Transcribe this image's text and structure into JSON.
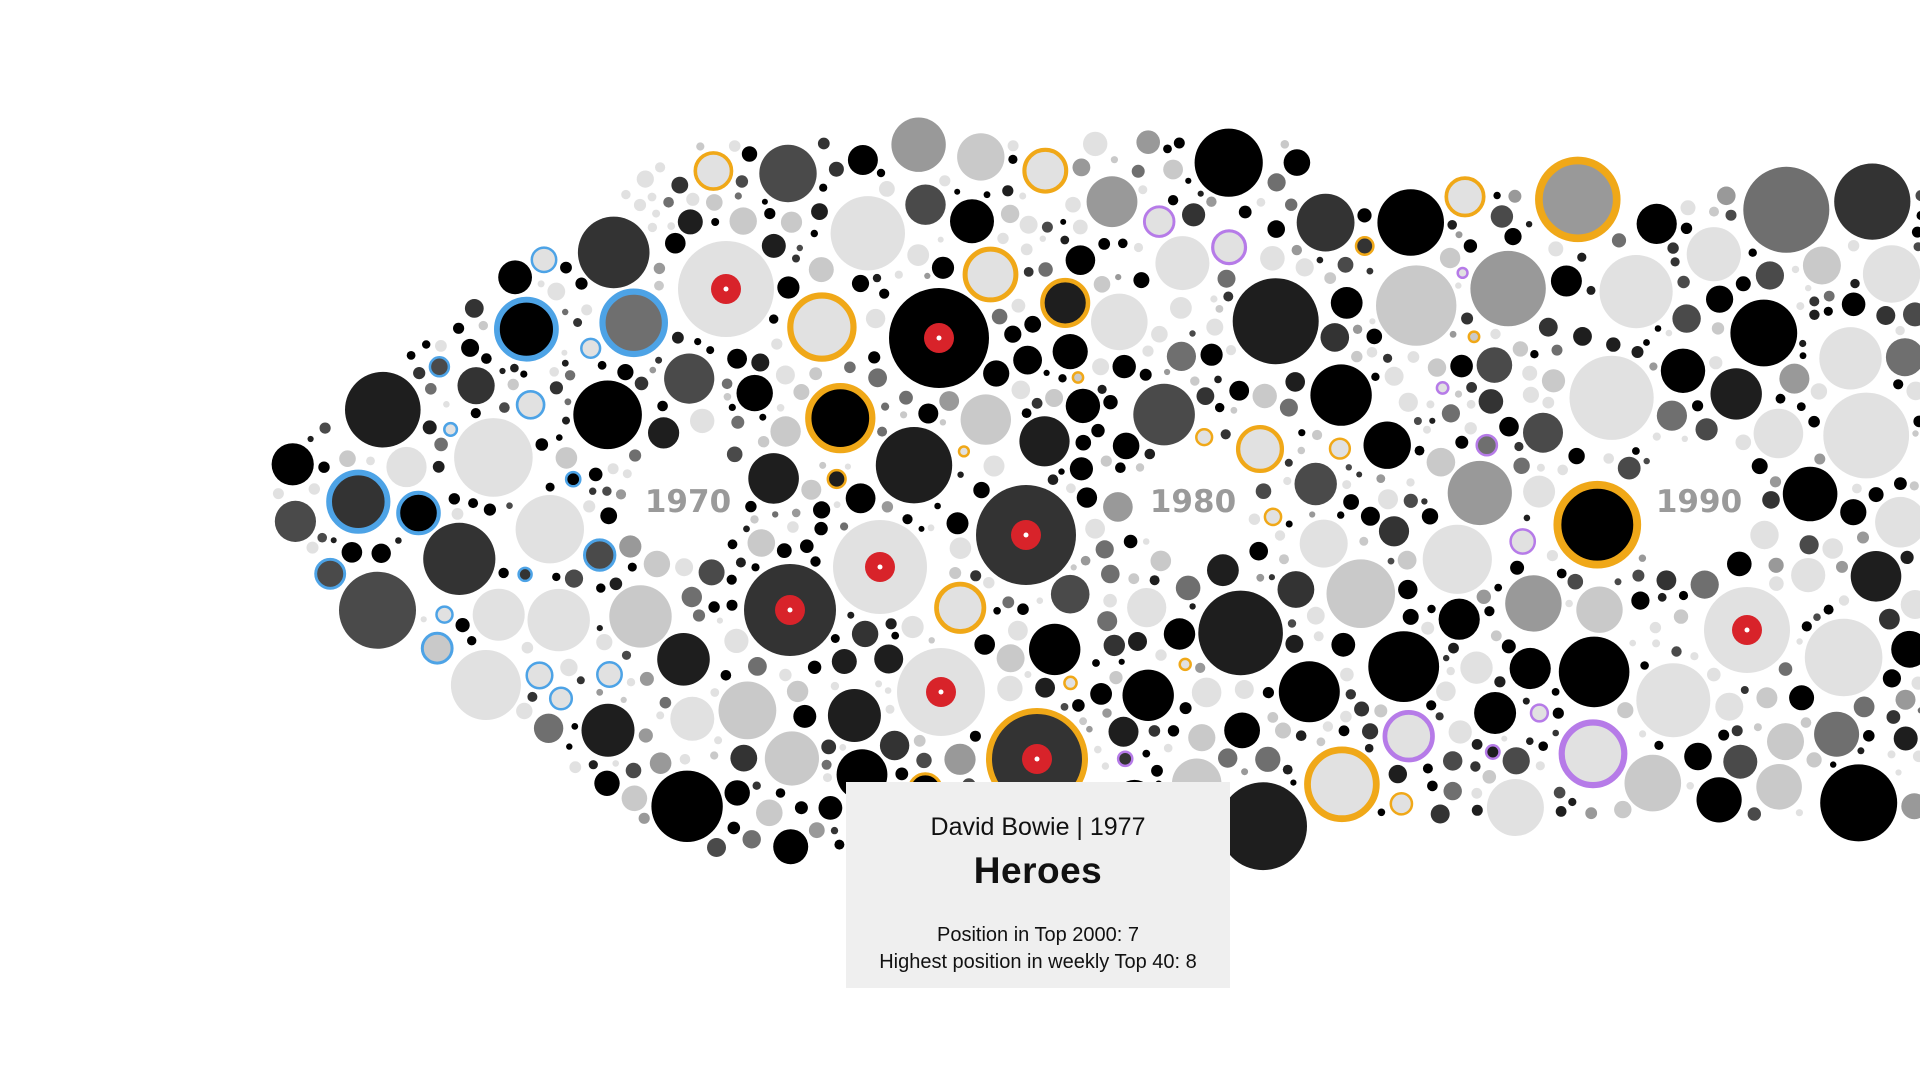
{
  "chart_data": {
    "type": "scatter",
    "decade_labels": [
      "1970",
      "1980",
      "1990"
    ],
    "legend": [],
    "highlighted_song": {
      "artist": "David Bowie",
      "year": 1977,
      "title": "Heroes",
      "position_top2000": 7,
      "highest_weekly_top40": 8
    }
  },
  "tooltip": {
    "subtitle": "David Bowie | 1977",
    "title": "Heroes",
    "stat_top2000": "Position in Top 2000: 7",
    "stat_top40": "Highest position in weekly Top 40: 8"
  },
  "colors": {
    "background": "#ffffff",
    "grays": [
      "#000000",
      "#1e1e1e",
      "#333333",
      "#4a4a4a",
      "#6f6f6f",
      "#999999",
      "#c9c9c9",
      "#e1e1e1"
    ],
    "ring_blue": "#4da3e6",
    "ring_gold": "#f0a818",
    "ring_purple": "#b67be8",
    "ring_red": "#d8232a",
    "record_center": "#d8232a",
    "tooltip_bg": "#efefef"
  }
}
